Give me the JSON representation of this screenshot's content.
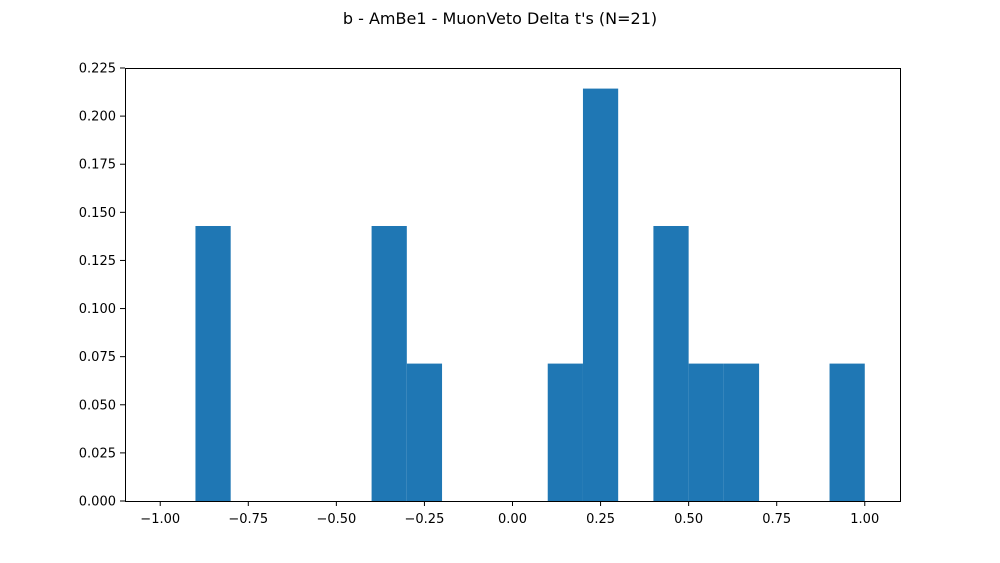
{
  "chart_data": {
    "type": "bar",
    "title": "b - AmBe1 - MuonVeto Delta t's (N=21)",
    "xlabel": "",
    "ylabel": "",
    "xlim": [
      -1.1,
      1.1
    ],
    "ylim": [
      0,
      0.225
    ],
    "grid": false,
    "bar_color": "#1f77b4",
    "bins": [
      {
        "x0": -0.9,
        "x1": -0.8,
        "value": 0.1429
      },
      {
        "x0": -0.4,
        "x1": -0.3,
        "value": 0.1429
      },
      {
        "x0": -0.3,
        "x1": -0.2,
        "value": 0.0714
      },
      {
        "x0": 0.1,
        "x1": 0.2,
        "value": 0.0714
      },
      {
        "x0": 0.2,
        "x1": 0.3,
        "value": 0.2143
      },
      {
        "x0": 0.4,
        "x1": 0.5,
        "value": 0.1429
      },
      {
        "x0": 0.5,
        "x1": 0.6,
        "value": 0.0714
      },
      {
        "x0": 0.6,
        "x1": 0.7,
        "value": 0.0714
      },
      {
        "x0": 0.9,
        "x1": 1.0,
        "value": 0.0714
      }
    ],
    "x_ticks": [
      {
        "value": -1.0,
        "label": "−1.00"
      },
      {
        "value": -0.75,
        "label": "−0.75"
      },
      {
        "value": -0.5,
        "label": "−0.50"
      },
      {
        "value": -0.25,
        "label": "−0.25"
      },
      {
        "value": 0.0,
        "label": "0.00"
      },
      {
        "value": 0.25,
        "label": "0.25"
      },
      {
        "value": 0.5,
        "label": "0.50"
      },
      {
        "value": 0.75,
        "label": "0.75"
      },
      {
        "value": 1.0,
        "label": "1.00"
      }
    ],
    "y_ticks": [
      {
        "value": 0.0,
        "label": "0.000"
      },
      {
        "value": 0.025,
        "label": "0.025"
      },
      {
        "value": 0.05,
        "label": "0.050"
      },
      {
        "value": 0.075,
        "label": "0.075"
      },
      {
        "value": 0.1,
        "label": "0.100"
      },
      {
        "value": 0.125,
        "label": "0.125"
      },
      {
        "value": 0.15,
        "label": "0.150"
      },
      {
        "value": 0.175,
        "label": "0.175"
      },
      {
        "value": 0.2,
        "label": "0.200"
      },
      {
        "value": 0.225,
        "label": "0.225"
      }
    ]
  }
}
